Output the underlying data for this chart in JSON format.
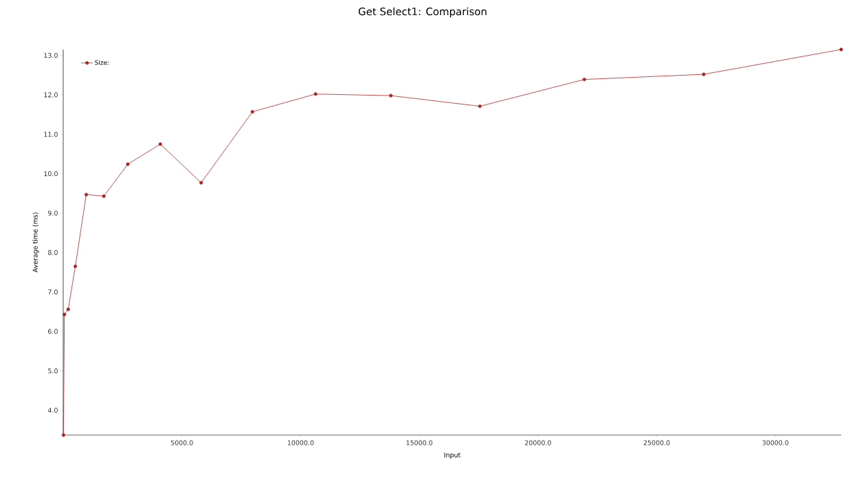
{
  "chart_data": {
    "type": "line",
    "title": "Get Select1: Comparison",
    "xlabel": "Input",
    "ylabel": "Average time (ms)",
    "x": [
      10,
      50,
      210,
      510,
      970,
      1710,
      2720,
      4090,
      5810,
      7970,
      10630,
      13800,
      17550,
      21950,
      26980,
      32770
    ],
    "series": [
      {
        "name": "Size:",
        "color": "#b22222",
        "values": [
          3.37,
          6.43,
          6.56,
          7.65,
          9.47,
          9.43,
          10.24,
          10.75,
          9.77,
          11.57,
          12.02,
          11.98,
          11.71,
          12.39,
          12.52,
          13.15
        ]
      }
    ],
    "xlim": [
      0,
      32770
    ],
    "ylim": [
      3.37,
      13.15
    ],
    "xticks": [
      {
        "value": 5000,
        "label": "5000.0"
      },
      {
        "value": 10000,
        "label": "10000.0"
      },
      {
        "value": 15000,
        "label": "15000.0"
      },
      {
        "value": 20000,
        "label": "20000.0"
      },
      {
        "value": 25000,
        "label": "25000.0"
      },
      {
        "value": 30000,
        "label": "30000.0"
      }
    ],
    "yticks": [
      {
        "value": 4,
        "label": "4.0"
      },
      {
        "value": 5,
        "label": "5.0"
      },
      {
        "value": 6,
        "label": "6.0"
      },
      {
        "value": 7,
        "label": "7.0"
      },
      {
        "value": 8,
        "label": "8.0"
      },
      {
        "value": 9,
        "label": "9.0"
      },
      {
        "value": 10,
        "label": "10.0"
      },
      {
        "value": 11,
        "label": "11.0"
      },
      {
        "value": 12,
        "label": "12.0"
      },
      {
        "value": 13,
        "label": "13.0"
      }
    ],
    "grid": false,
    "legend": "top left",
    "marker": "circle",
    "line_style": "solid"
  }
}
